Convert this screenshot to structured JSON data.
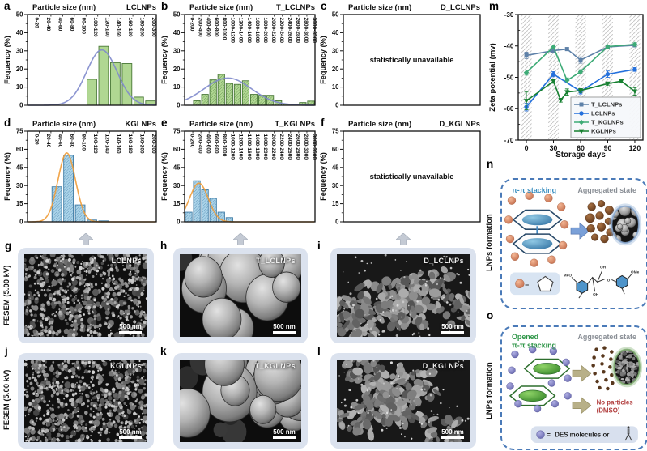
{
  "panel_letters": {
    "m": "m",
    "n": "n",
    "o": "o"
  },
  "side_labels": {
    "fesem_g": "FESEM (5.00 kV)",
    "fesem_j": "FESEM (5.00 kV)",
    "lnps_n": "LNPs formation",
    "lnps_o": "LNPs formation"
  },
  "chart_data": [
    {
      "id": "a",
      "letter": "a",
      "type": "bar",
      "title": "Particle size (nm)",
      "sample": "LCLNPs",
      "ylabel": "Fequency (%)",
      "ylim": [
        0,
        50
      ],
      "yticks": [
        0,
        10,
        20,
        30,
        40,
        50
      ],
      "categories": [
        "0-20",
        "20-40",
        "40-60",
        "60-80",
        "80-100",
        "100-120",
        "120-140",
        "140-160",
        "160-180",
        "180-200",
        "200-300"
      ],
      "values": [
        0,
        0,
        0,
        0,
        0,
        14.3,
        32.5,
        23.5,
        23,
        4.5,
        2.4
      ],
      "fit": {
        "center": 6.35,
        "sigma": 1.3,
        "height": 30.5
      },
      "bar_fill": "#b0d792",
      "bar_edge": "#4a7838",
      "curve_color": "#8089cc",
      "hatch": false
    },
    {
      "id": "b",
      "letter": "b",
      "type": "bar",
      "title": "Particle size (nm)",
      "sample": "T_LCLNPs",
      "ylabel": "Fequency (%)",
      "ylim": [
        0,
        50
      ],
      "yticks": [
        0,
        10,
        20,
        30,
        40,
        50
      ],
      "categories": [
        "0-200",
        "200-400",
        "400-600",
        "600-800",
        "800-1000",
        "1000-1200",
        "1200-1400",
        "1400-1600",
        "1600-1800",
        "1800-2000",
        "2000-2200",
        "2200-2400",
        "2400-2600",
        "2600-2800",
        "2800-3000",
        "3000-3500"
      ],
      "values": [
        0,
        2.5,
        6,
        14,
        17,
        12,
        11.5,
        13.5,
        6,
        5.5,
        5.5,
        2.5,
        0.6,
        0.6,
        1.5,
        2.3
      ],
      "fit": {
        "center": 5.3,
        "sigma": 2.9,
        "height": 15
      },
      "bar_fill": "#b0d792",
      "bar_edge": "#4a7838",
      "curve_color": "#8089cc",
      "hatch": true
    },
    {
      "id": "c",
      "letter": "c",
      "type": "empty",
      "title": "Particle size (nm)",
      "sample": "D_LCLNPs",
      "ylabel": "Fequency (%)",
      "ylim": [
        0,
        50
      ],
      "yticks": [
        0,
        10,
        20,
        30,
        40,
        50
      ],
      "note": "statistically unavailable"
    },
    {
      "id": "d",
      "letter": "d",
      "type": "bar",
      "title": "Particle size (nm)",
      "sample": "KGLNPs",
      "ylabel": "Fequency (%)",
      "ylim": [
        0,
        75
      ],
      "yticks": [
        0,
        15,
        30,
        45,
        60,
        75
      ],
      "categories": [
        "0-20",
        "20-40",
        "40-60",
        "60-80",
        "80-100",
        "100-120",
        "120-140",
        "140-160",
        "160-180",
        "180-200",
        "200-300"
      ],
      "values": [
        0,
        0,
        29,
        55,
        14,
        1.5,
        0.8,
        0,
        0,
        0,
        0
      ],
      "fit": {
        "center": 3.35,
        "sigma": 0.75,
        "height": 57
      },
      "bar_fill": "#a9d2e8",
      "bar_edge": "#3f7ca6",
      "curve_color": "#f09c38",
      "hatch": true
    },
    {
      "id": "e",
      "letter": "e",
      "type": "bar",
      "title": "Particle size (nm)",
      "sample": "T_KGLNPs",
      "ylabel": "Fequency (%)",
      "ylim": [
        0,
        75
      ],
      "yticks": [
        0,
        15,
        30,
        45,
        60,
        75
      ],
      "categories": [
        "0-200",
        "200-400",
        "400-600",
        "600-800",
        "800-1000",
        "1000-1200",
        "1200-1400",
        "1400-1600",
        "1600-1800",
        "1800-2000",
        "2000-2200",
        "2200-2400",
        "2400-2600",
        "2600-2800",
        "2800-3000",
        "3000-3500"
      ],
      "values": [
        8,
        34,
        26.5,
        19.5,
        8,
        3.5,
        0,
        0,
        0,
        0,
        0,
        0,
        0,
        0,
        0,
        0
      ],
      "fit": {
        "center": 1.75,
        "sigma": 1.15,
        "height": 32
      },
      "bar_fill": "#a9d2e8",
      "bar_edge": "#3f7ca6",
      "curve_color": "#f09c38",
      "hatch": true
    },
    {
      "id": "f",
      "letter": "f",
      "type": "empty",
      "title": "Particle size (nm)",
      "sample": "D_KGLNPs",
      "ylabel": "Fequency (%)",
      "ylim": [
        0,
        75
      ],
      "yticks": [
        0,
        15,
        30,
        45,
        60,
        75
      ],
      "note": "statistically unavailable"
    },
    {
      "id": "m",
      "letter": "m",
      "type": "line",
      "ylabel": "Zeta potential (mv)",
      "xlabel": "Storage days",
      "ylim": [
        -70,
        -30
      ],
      "yticks": [
        -30,
        -40,
        -50,
        -60,
        -70
      ],
      "xticks": [
        0,
        30,
        60,
        90,
        120
      ],
      "legend_position": "bottom-right",
      "hatched_bands_at_xticks": true,
      "series": [
        {
          "name": "T_LCLNPs",
          "color": "#5e81a8",
          "marker": "square",
          "x": [
            0,
            30,
            45,
            60,
            90,
            120
          ],
          "y": [
            -43,
            -41.5,
            -41,
            -44.5,
            -40.3,
            -39.8
          ],
          "err": [
            1,
            0.5,
            0.5,
            1,
            0.6,
            0.5
          ]
        },
        {
          "name": "LCLNPs",
          "color": "#2470dc",
          "marker": "circle",
          "x": [
            0,
            30,
            60,
            90,
            120
          ],
          "y": [
            -59.5,
            -49,
            -54.5,
            -49,
            -47.5
          ],
          "err": [
            1.2,
            0.8,
            0.8,
            1,
            0.6
          ]
        },
        {
          "name": "T_KGLNPs",
          "color": "#3dab76",
          "marker": "diamond",
          "x": [
            0,
            30,
            45,
            60,
            90,
            120
          ],
          "y": [
            -48.5,
            -40.3,
            -51,
            -48.2,
            -40.2,
            -39.5
          ],
          "err": [
            0.8,
            0.6,
            0.8,
            0.6,
            0.5,
            0.5
          ]
        },
        {
          "name": "KGLNPs",
          "color": "#168030",
          "marker": "triangle-down",
          "x": [
            0,
            30,
            38,
            45,
            60,
            90,
            105,
            120
          ],
          "y": [
            -57.5,
            -51.3,
            -57.3,
            -54.7,
            -54.2,
            -52,
            -51.2,
            -54.5
          ],
          "err": [
            2.8,
            0.6,
            0.6,
            1,
            0.6,
            0.5,
            0.4,
            1.2
          ]
        }
      ]
    }
  ],
  "sem_panels": [
    {
      "letter": "g",
      "label": "LCLNPs",
      "scale_label": "500 nm",
      "texture": "dense-small-particles"
    },
    {
      "letter": "h",
      "label": "T_LCLNPs",
      "scale_label": "500 nm",
      "texture": "large-spheres"
    },
    {
      "letter": "i",
      "label": "D_LCLNPs",
      "scale_label": "500 nm",
      "texture": "aggregated-clumps"
    },
    {
      "letter": "j",
      "label": "KGLNPs",
      "scale_label": "500 nm",
      "texture": "dense-small-particles"
    },
    {
      "letter": "k",
      "label": "T_KGLNPs",
      "scale_label": "500 nm",
      "texture": "large-spheres"
    },
    {
      "letter": "l",
      "label": "D_KGLNPs",
      "scale_label": "500 nm",
      "texture": "aggregated-clumps"
    }
  ],
  "schematic_n": {
    "stacking_label": "π-π stacking",
    "state_label": "Aggregated state",
    "equals": "=",
    "mol_labels": [
      "MeO",
      "OH",
      "O",
      "OMe",
      "OH"
    ]
  },
  "schematic_o": {
    "opened_label": "Opened",
    "stacking_label": "π-π stacking",
    "state_label": "Aggregated state",
    "no_particles_label": "No particles",
    "dmso_label": "(DMSO)",
    "equals": "=",
    "legend_text": "DES molecules",
    "or_label": "or"
  }
}
